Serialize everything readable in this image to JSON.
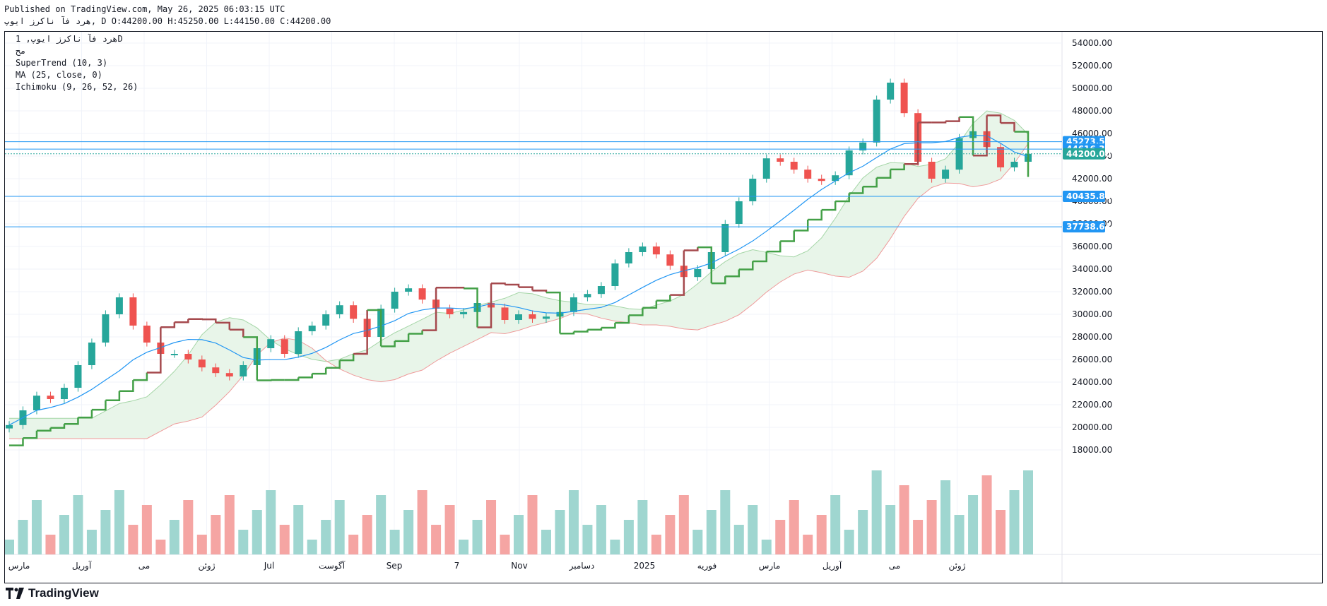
{
  "header": {
    "published": "Published on TradingView.com, May 26, 2025 06:03:15 UTC",
    "symbol_line": "هرد فآ ناكرز ايوپ, D O:44200.00 H:45250.00 L:44150.00 C:44200.00"
  },
  "legend": {
    "symbol": "هرد فآ ناكرز ايوپ, 1D",
    "line2": "مح",
    "supertrend": "SuperTrend (10, 3)",
    "ma": "MA (25, close, 0)",
    "ichimoku": "Ichimoku (9, 26, 52, 26)"
  },
  "footer": {
    "brand": "TradingView"
  },
  "colors": {
    "up": "#26a69a",
    "down": "#ef5350",
    "st_up": "#43a047",
    "st_down": "#a5494d",
    "ma": "#2196f3",
    "hline": "#2196f3",
    "price": "#26a69a",
    "cloud_up": "#e8f5e9",
    "cloud_down": "#fce4e4"
  },
  "chart_data": {
    "type": "candlestick",
    "title": "هرد فآ ناكرز ايوپ, 1D",
    "y_ticks": [
      "54000.00",
      "52000.00",
      "50000.00",
      "48000.00",
      "46000.00",
      "44000.00",
      "42000.00",
      "40000.00",
      "38000.00",
      "36000.00",
      "34000.00",
      "32000.00",
      "30000.00",
      "28000.00",
      "26000.00",
      "24000.00",
      "22000.00",
      "20000.00",
      "18000.00"
    ],
    "ylim": [
      17000,
      55000
    ],
    "x_ticks": [
      "مارس",
      "آوریل",
      "می",
      "ژوئن",
      "Jul",
      "آگوست",
      "Sep",
      "7",
      "Nov",
      "دسامبر",
      "2025",
      "فوریه",
      "مارس",
      "آوریل",
      "می",
      "ژوئن"
    ],
    "price_levels": [
      {
        "label": "45273.54",
        "value": 45273.54,
        "kind": "hline"
      },
      {
        "label": "44616.30",
        "value": 44616.3,
        "kind": "hline"
      },
      {
        "label": "44200.00",
        "value": 44200.0,
        "kind": "last"
      },
      {
        "label": "40435.88",
        "value": 40435.88,
        "kind": "hline"
      },
      {
        "label": "37738.64",
        "value": 37738.64,
        "kind": "hline"
      }
    ],
    "close_series": [
      20200,
      21500,
      22800,
      22500,
      23500,
      25500,
      27500,
      30000,
      31500,
      29000,
      27500,
      26500,
      26500,
      26000,
      25300,
      24800,
      24500,
      25500,
      27000,
      27800,
      26500,
      28500,
      29000,
      30000,
      30800,
      29600,
      28000,
      30500,
      32000,
      32300,
      31300,
      30500,
      30000,
      30200,
      31000,
      30600,
      29500,
      30000,
      29600,
      29800,
      30200,
      31500,
      31800,
      32500,
      34500,
      35500,
      36000,
      35300,
      34300,
      33300,
      34000,
      35500,
      38000,
      40000,
      42000,
      43800,
      43500,
      42800,
      42000,
      41800,
      42300,
      44500,
      45200,
      49000,
      50500,
      47800,
      43500,
      42000,
      42800,
      45600,
      46200,
      44800,
      43000,
      43500,
      44200
    ],
    "volume_ylim": [
      0,
      15000000
    ]
  }
}
